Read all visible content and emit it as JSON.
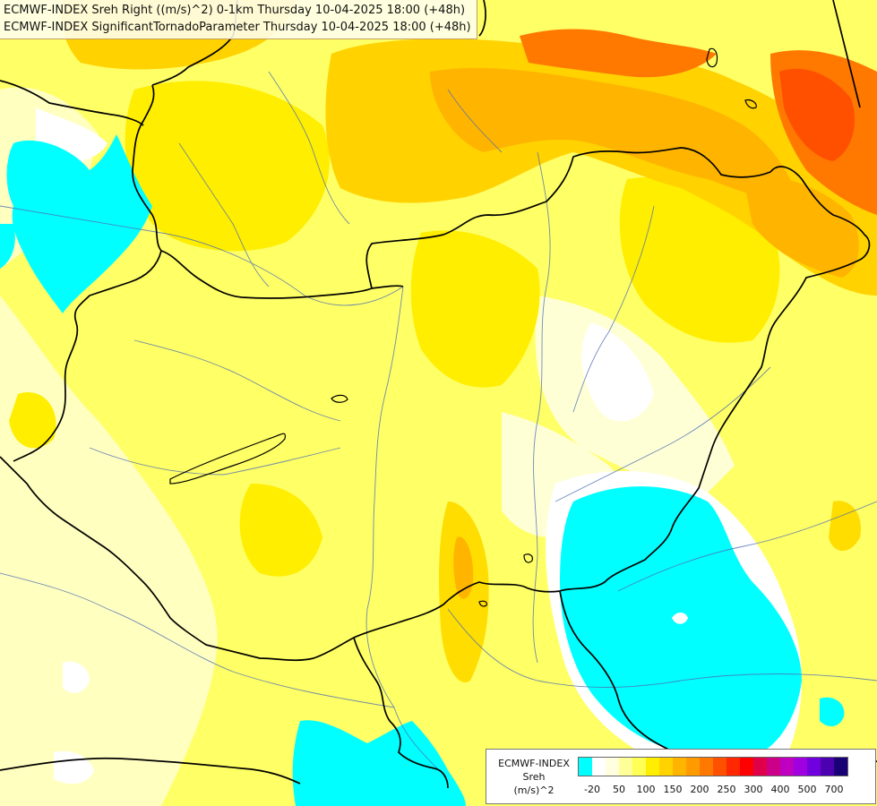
{
  "map": {
    "title_line_1": "ECMWF-INDEX Sreh Right ((m/s)^2) 0-1km Thursday 10-04-2025 18:00 (+48h)",
    "title_line_2": "ECMWF-INDEX SignificantTornadoParameter Thursday 10-04-2025 18:00 (+48h)"
  },
  "legend": {
    "source_label": "ECMWF-INDEX",
    "variable_label": "Sreh",
    "unit_label": "(m/s)^2",
    "tick_labels": [
      "-20",
      "50",
      "100",
      "150",
      "200",
      "250",
      "300",
      "400",
      "500",
      "700"
    ],
    "swatch_colors": [
      "#00ffff",
      "#ffffff",
      "#ffffe0",
      "#ffff99",
      "#ffff55",
      "#ffee00",
      "#ffd200",
      "#ffb400",
      "#ff9b00",
      "#ff7800",
      "#ff5000",
      "#ff2800",
      "#ff0000",
      "#e0004a",
      "#cc0088",
      "#c000c0",
      "#a000e0",
      "#7000dd",
      "#4d00b0",
      "#1a0077"
    ]
  }
}
